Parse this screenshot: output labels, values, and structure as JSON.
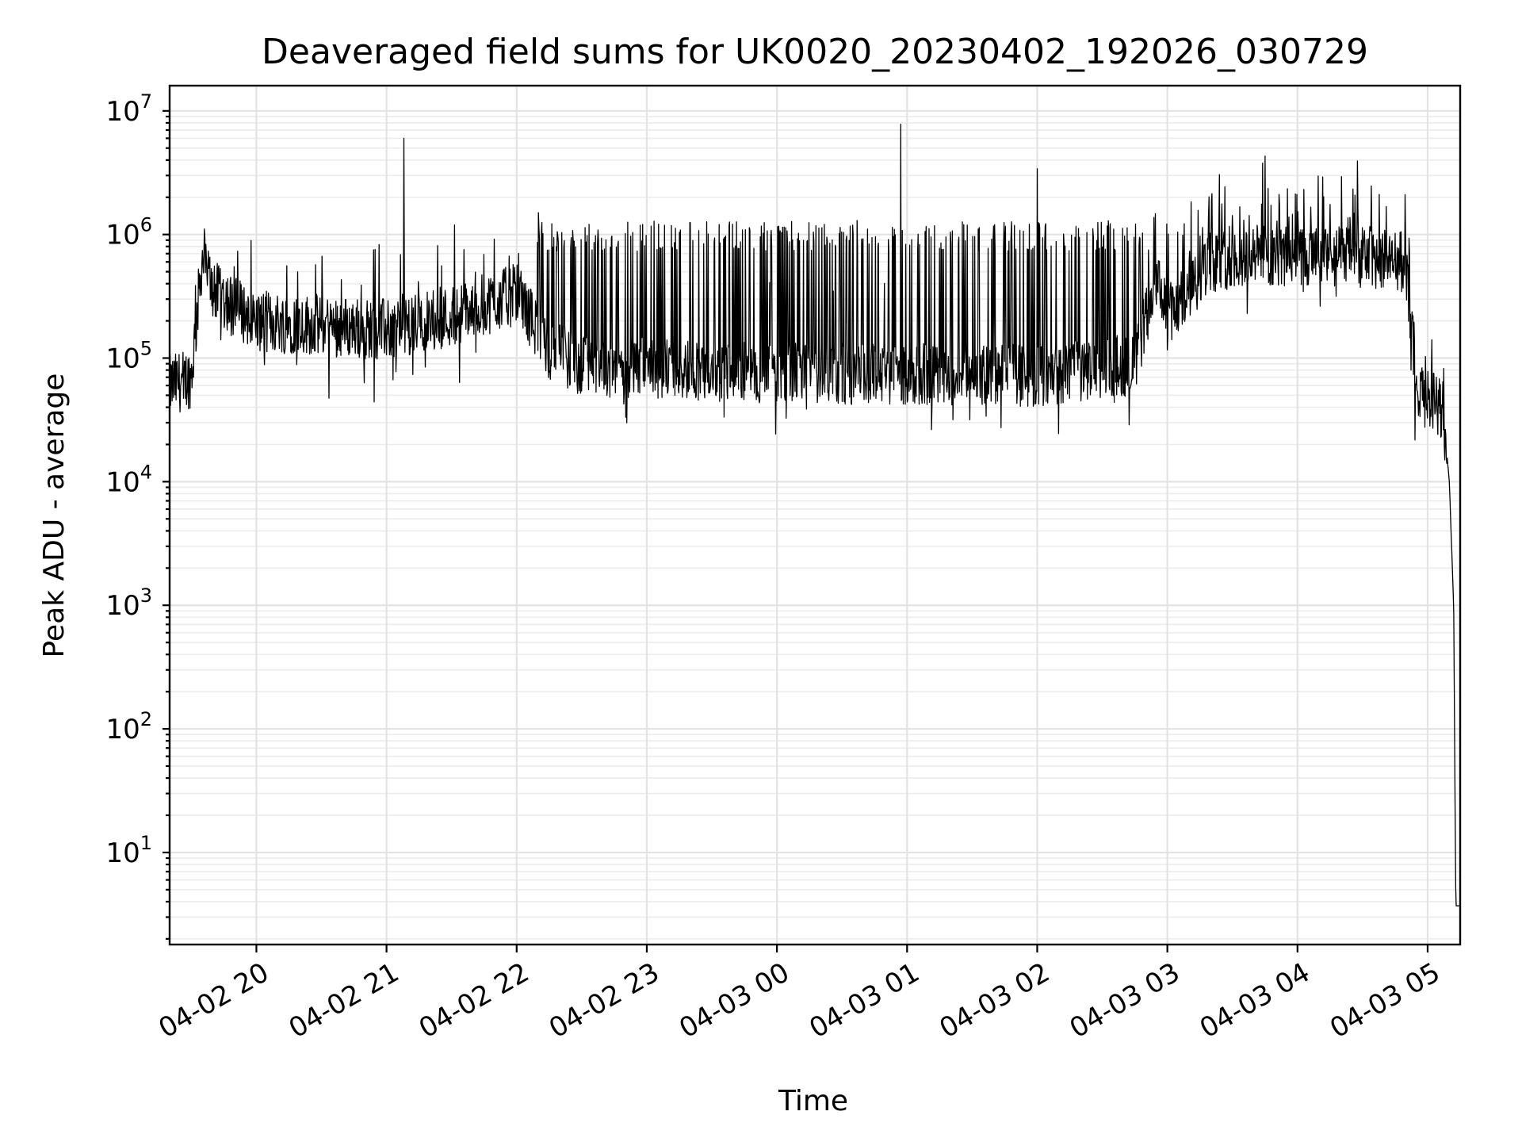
{
  "chart_data": {
    "type": "line",
    "title": "Deaveraged field sums for UK0020_20230402_192026_030729",
    "xlabel": "Time",
    "ylabel": "Peak ADU - average",
    "yscale": "log",
    "ylim": [
      1.8,
      16000000
    ],
    "xlim": [
      "2023-04-02 19:20",
      "2023-04-03 05:15"
    ],
    "grid": "on (major and minor)",
    "legend": "none",
    "line_color": "#000000",
    "x_ticks": [
      {
        "value": "2023-04-02 20:00",
        "label": "04-02 20"
      },
      {
        "value": "2023-04-02 21:00",
        "label": "04-02 21"
      },
      {
        "value": "2023-04-02 22:00",
        "label": "04-02 22"
      },
      {
        "value": "2023-04-02 23:00",
        "label": "04-02 23"
      },
      {
        "value": "2023-04-03 00:00",
        "label": "04-03 00"
      },
      {
        "value": "2023-04-03 01:00",
        "label": "04-03 01"
      },
      {
        "value": "2023-04-03 02:00",
        "label": "04-03 02"
      },
      {
        "value": "2023-04-03 03:00",
        "label": "04-03 03"
      },
      {
        "value": "2023-04-03 04:00",
        "label": "04-03 04"
      },
      {
        "value": "2023-04-03 05:00",
        "label": "04-03 05"
      }
    ],
    "y_ticks": [
      {
        "value": 10,
        "base": "10",
        "exp": "1"
      },
      {
        "value": 100,
        "base": "10",
        "exp": "2"
      },
      {
        "value": 1000,
        "base": "10",
        "exp": "3"
      },
      {
        "value": 10000,
        "base": "10",
        "exp": "4"
      },
      {
        "value": 100000,
        "base": "10",
        "exp": "5"
      },
      {
        "value": 1000000,
        "base": "10",
        "exp": "6"
      },
      {
        "value": 10000000,
        "base": "10",
        "exp": "7"
      }
    ],
    "series": [
      {
        "baseline": [
          [
            "2023-04-02 19:20",
            60000
          ],
          [
            "2023-04-02 19:30",
            70000
          ],
          [
            "2023-04-02 19:35",
            650000
          ],
          [
            "2023-04-02 19:40",
            350000
          ],
          [
            "2023-04-02 20:00",
            200000
          ],
          [
            "2023-04-02 21:00",
            170000
          ],
          [
            "2023-04-02 21:30",
            220000
          ],
          [
            "2023-04-02 22:00",
            330000
          ],
          [
            "2023-04-02 22:15",
            120000
          ],
          [
            "2023-04-02 22:30",
            85000
          ],
          [
            "2023-04-02 23:00",
            85000
          ],
          [
            "2023-04-03 00:00",
            75000
          ],
          [
            "2023-04-03 01:00",
            75000
          ],
          [
            "2023-04-03 02:00",
            72000
          ],
          [
            "2023-04-03 02:45",
            90000
          ],
          [
            "2023-04-03 02:55",
            450000
          ],
          [
            "2023-04-03 03:00",
            200000
          ],
          [
            "2023-04-03 03:20",
            600000
          ],
          [
            "2023-04-03 03:40",
            700000
          ],
          [
            "2023-04-03 04:00",
            650000
          ],
          [
            "2023-04-03 04:30",
            650000
          ],
          [
            "2023-04-03 04:50",
            600000
          ],
          [
            "2023-04-03 04:55",
            50000
          ],
          [
            "2023-04-03 05:07",
            40000
          ],
          [
            "2023-04-03 05:10",
            10000
          ],
          [
            "2023-04-03 05:12",
            1000
          ],
          [
            "2023-04-03 05:13",
            3.7
          ],
          [
            "2023-04-03 05:15",
            3.7
          ]
        ],
        "spikes": [
          [
            "2023-04-02 21:08",
            6000000
          ],
          [
            "2023-04-02 22:10",
            1500000
          ],
          [
            "2023-04-03 00:57",
            7800000
          ],
          [
            "2023-04-03 02:00",
            3400000
          ],
          [
            "2023-04-03 03:45",
            4300000
          ]
        ]
      }
    ]
  }
}
